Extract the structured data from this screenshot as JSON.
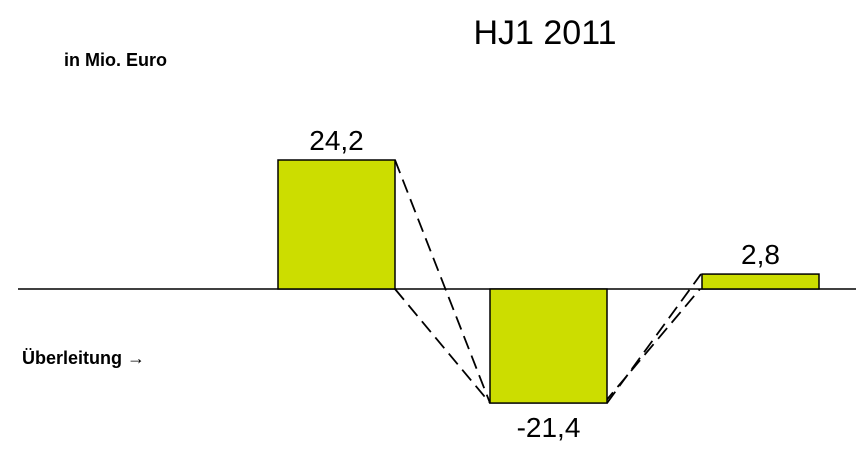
{
  "chart_data": {
    "type": "bar",
    "title": "HJ1 2011",
    "unit_label": "in Mio. Euro",
    "side_label": "Überleitung →",
    "categories": [
      "",
      "",
      ""
    ],
    "values": [
      24.2,
      -21.4,
      2.8
    ],
    "value_labels": [
      "24,2",
      "-21,4",
      "2,8"
    ],
    "ylim": [
      -24,
      28
    ],
    "grid": false,
    "connectors": "dashed",
    "colors": {
      "bar_fill": "#CCDD00",
      "bar_stroke": "#000000",
      "axis": "#000000",
      "connector": "#000000",
      "text": "#000000"
    }
  }
}
